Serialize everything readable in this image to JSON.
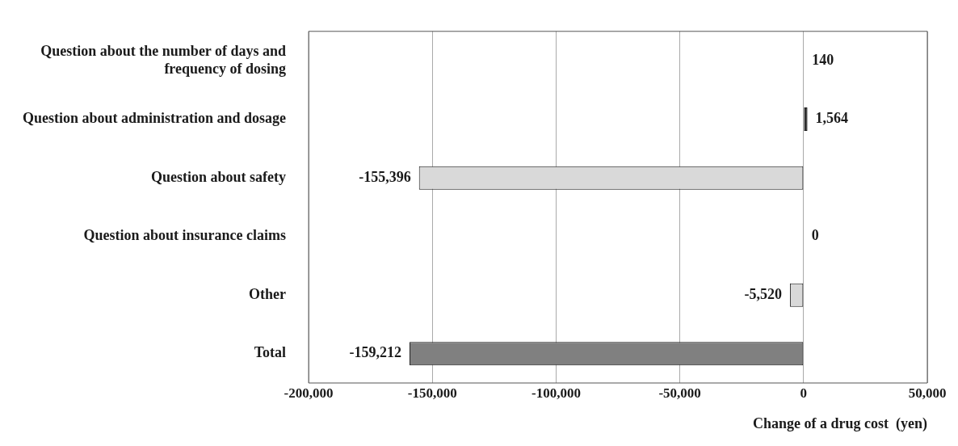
{
  "chart_data": {
    "type": "bar",
    "orientation": "horizontal",
    "categories": [
      "Question about the number of days and frequency of dosing",
      "Question about administration and dosage",
      "Question about safety",
      "Question about insurance claims",
      "Other",
      "Total"
    ],
    "values": [
      140,
      1564,
      -155396,
      0,
      -5520,
      -159212
    ],
    "colors": [
      "#1a1a1a",
      "#1a1a1a",
      "#d9d9d9",
      "#d9d9d9",
      "#d9d9d9",
      "#808080"
    ],
    "value_labels": [
      "140",
      "1,564",
      "-155,396",
      "0",
      "-5,520",
      "-159,212"
    ],
    "xlabel": "Change of a drug cost  (yen)",
    "xlim": [
      -200000,
      50000
    ],
    "xticks": [
      {
        "value": -200000,
        "label": "-200,000"
      },
      {
        "value": -150000,
        "label": "-150,000"
      },
      {
        "value": -100000,
        "label": "-100,000"
      },
      {
        "value": -50000,
        "label": "-50,000"
      },
      0,
      {
        "value": 50000,
        "label": "50,000"
      }
    ],
    "grid": "x",
    "legend": false
  }
}
